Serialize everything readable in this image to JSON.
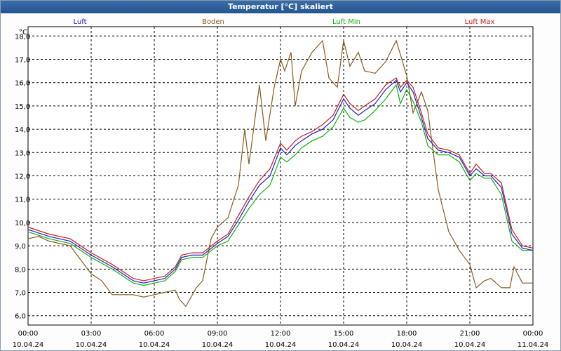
{
  "window": {
    "title": "Temperatur [°C] skaliert"
  },
  "chart_data": {
    "type": "line",
    "title": "Temperatur [°C] skaliert",
    "ylabel": "°C",
    "ylim": [
      5.6,
      18.4
    ],
    "yticks": [
      "18,0",
      "17,0",
      "16,0",
      "15,0",
      "14,0",
      "13,0",
      "12,0",
      "11,0",
      "10,0",
      "9,0",
      "8,0",
      "7,0",
      "6,0"
    ],
    "xlim": [
      0,
      24
    ],
    "xticks": [
      {
        "time": "00:00",
        "date": "10.04.24"
      },
      {
        "time": "03:00",
        "date": "10.04.24"
      },
      {
        "time": "06:00",
        "date": "10.04.24"
      },
      {
        "time": "09:00",
        "date": "10.04.24"
      },
      {
        "time": "12:00",
        "date": "10.04.24"
      },
      {
        "time": "15:00",
        "date": "10.04.24"
      },
      {
        "time": "18:00",
        "date": "10.04.24"
      },
      {
        "time": "21:00",
        "date": "10.04.24"
      },
      {
        "time": "00:00",
        "date": "11.04.24"
      }
    ],
    "grid": true,
    "legend_position": "top",
    "series": [
      {
        "name": "Luft",
        "color": "#2020c8",
        "points": [
          [
            0,
            9.7
          ],
          [
            1,
            9.4
          ],
          [
            2,
            9.2
          ],
          [
            3,
            8.6
          ],
          [
            4,
            8.1
          ],
          [
            5,
            7.5
          ],
          [
            5.5,
            7.4
          ],
          [
            6,
            7.5
          ],
          [
            6.5,
            7.6
          ],
          [
            7,
            8.0
          ],
          [
            7.3,
            8.5
          ],
          [
            7.8,
            8.6
          ],
          [
            8.3,
            8.6
          ],
          [
            9,
            9.1
          ],
          [
            9.5,
            9.4
          ],
          [
            10,
            10.1
          ],
          [
            10.5,
            10.9
          ],
          [
            11,
            11.6
          ],
          [
            11.5,
            12.0
          ],
          [
            12,
            13.2
          ],
          [
            12.3,
            12.9
          ],
          [
            12.7,
            13.3
          ],
          [
            13,
            13.5
          ],
          [
            13.5,
            13.8
          ],
          [
            14,
            14.0
          ],
          [
            14.5,
            14.4
          ],
          [
            15,
            15.3
          ],
          [
            15.3,
            14.9
          ],
          [
            15.7,
            14.6
          ],
          [
            16,
            14.8
          ],
          [
            16.5,
            15.1
          ],
          [
            17,
            15.7
          ],
          [
            17.5,
            16.1
          ],
          [
            17.7,
            15.6
          ],
          [
            18,
            16.0
          ],
          [
            18.3,
            15.6
          ],
          [
            18.7,
            14.5
          ],
          [
            19,
            13.6
          ],
          [
            19.5,
            13.1
          ],
          [
            20,
            13.0
          ],
          [
            20.5,
            12.8
          ],
          [
            21,
            12.0
          ],
          [
            21.3,
            12.3
          ],
          [
            21.7,
            12.0
          ],
          [
            22,
            12.0
          ],
          [
            22.5,
            11.5
          ],
          [
            23,
            9.5
          ],
          [
            23.5,
            8.9
          ],
          [
            24,
            8.8
          ]
        ]
      },
      {
        "name": "Boden",
        "color": "#8b5a1e",
        "points": [
          [
            0,
            9.3
          ],
          [
            0.5,
            9.4
          ],
          [
            1,
            9.2
          ],
          [
            2,
            9.0
          ],
          [
            3,
            7.8
          ],
          [
            3.5,
            7.5
          ],
          [
            4,
            6.9
          ],
          [
            4.5,
            6.9
          ],
          [
            5,
            6.9
          ],
          [
            5.5,
            6.8
          ],
          [
            6,
            6.9
          ],
          [
            6.5,
            7.0
          ],
          [
            7,
            7.1
          ],
          [
            7.2,
            6.7
          ],
          [
            7.5,
            6.4
          ],
          [
            8,
            7.2
          ],
          [
            8.3,
            7.5
          ],
          [
            8.7,
            9.3
          ],
          [
            9,
            9.8
          ],
          [
            9.5,
            10.2
          ],
          [
            10,
            11.6
          ],
          [
            10.3,
            14.0
          ],
          [
            10.5,
            12.5
          ],
          [
            11,
            15.9
          ],
          [
            11.3,
            13.5
          ],
          [
            11.7,
            15.8
          ],
          [
            12,
            17.0
          ],
          [
            12.2,
            16.5
          ],
          [
            12.5,
            17.3
          ],
          [
            12.7,
            15.0
          ],
          [
            13,
            16.5
          ],
          [
            13.5,
            17.3
          ],
          [
            14,
            17.8
          ],
          [
            14.3,
            16.2
          ],
          [
            14.7,
            15.8
          ],
          [
            15,
            17.8
          ],
          [
            15.3,
            16.7
          ],
          [
            15.7,
            17.3
          ],
          [
            16,
            16.5
          ],
          [
            16.5,
            16.4
          ],
          [
            17,
            16.9
          ],
          [
            17.5,
            17.8
          ],
          [
            18,
            16.3
          ],
          [
            18.3,
            14.7
          ],
          [
            18.7,
            15.6
          ],
          [
            19,
            14.8
          ],
          [
            19.5,
            11.4
          ],
          [
            20,
            9.6
          ],
          [
            20.5,
            8.8
          ],
          [
            21,
            8.2
          ],
          [
            21.3,
            7.2
          ],
          [
            21.7,
            7.5
          ],
          [
            22,
            7.6
          ],
          [
            22.5,
            7.2
          ],
          [
            22.9,
            7.2
          ],
          [
            23.1,
            8.1
          ],
          [
            23.5,
            7.4
          ],
          [
            24,
            7.4
          ]
        ]
      },
      {
        "name": "Luft Min",
        "color": "#10b010",
        "points": [
          [
            0,
            9.6
          ],
          [
            1,
            9.3
          ],
          [
            2,
            9.1
          ],
          [
            3,
            8.5
          ],
          [
            4,
            8.0
          ],
          [
            5,
            7.4
          ],
          [
            5.5,
            7.3
          ],
          [
            6,
            7.4
          ],
          [
            6.5,
            7.5
          ],
          [
            7,
            7.9
          ],
          [
            7.3,
            8.4
          ],
          [
            7.8,
            8.5
          ],
          [
            8.3,
            8.5
          ],
          [
            9,
            9.0
          ],
          [
            9.5,
            9.2
          ],
          [
            10,
            9.9
          ],
          [
            10.5,
            10.6
          ],
          [
            11,
            11.2
          ],
          [
            11.5,
            11.6
          ],
          [
            12,
            12.8
          ],
          [
            12.3,
            12.6
          ],
          [
            12.7,
            12.9
          ],
          [
            13,
            13.2
          ],
          [
            13.5,
            13.5
          ],
          [
            14,
            13.7
          ],
          [
            14.5,
            14.1
          ],
          [
            15,
            14.9
          ],
          [
            15.3,
            14.5
          ],
          [
            15.7,
            14.3
          ],
          [
            16,
            14.4
          ],
          [
            16.5,
            14.8
          ],
          [
            17,
            15.3
          ],
          [
            17.5,
            15.9
          ],
          [
            17.7,
            15.1
          ],
          [
            18,
            15.7
          ],
          [
            18.3,
            15.2
          ],
          [
            18.7,
            14.3
          ],
          [
            19,
            13.3
          ],
          [
            19.5,
            12.9
          ],
          [
            20,
            12.9
          ],
          [
            20.5,
            12.6
          ],
          [
            21,
            11.8
          ],
          [
            21.3,
            12.1
          ],
          [
            21.7,
            11.9
          ],
          [
            22,
            11.9
          ],
          [
            22.5,
            11.2
          ],
          [
            23,
            9.2
          ],
          [
            23.5,
            8.8
          ],
          [
            24,
            8.8
          ]
        ]
      },
      {
        "name": "Luft Max",
        "color": "#c81e1e",
        "points": [
          [
            0,
            9.8
          ],
          [
            1,
            9.5
          ],
          [
            2,
            9.3
          ],
          [
            3,
            8.7
          ],
          [
            4,
            8.2
          ],
          [
            5,
            7.6
          ],
          [
            5.5,
            7.5
          ],
          [
            6,
            7.6
          ],
          [
            6.5,
            7.7
          ],
          [
            7,
            8.1
          ],
          [
            7.3,
            8.6
          ],
          [
            7.8,
            8.7
          ],
          [
            8.3,
            8.7
          ],
          [
            9,
            9.2
          ],
          [
            9.5,
            9.5
          ],
          [
            10,
            10.3
          ],
          [
            10.5,
            11.1
          ],
          [
            11,
            11.8
          ],
          [
            11.5,
            12.3
          ],
          [
            12,
            13.4
          ],
          [
            12.3,
            13.1
          ],
          [
            12.7,
            13.5
          ],
          [
            13,
            13.7
          ],
          [
            13.5,
            13.9
          ],
          [
            14,
            14.2
          ],
          [
            14.5,
            14.6
          ],
          [
            15,
            15.5
          ],
          [
            15.3,
            15.1
          ],
          [
            15.7,
            14.8
          ],
          [
            16,
            15.0
          ],
          [
            16.5,
            15.3
          ],
          [
            17,
            15.9
          ],
          [
            17.5,
            16.2
          ],
          [
            17.7,
            15.8
          ],
          [
            18,
            16.1
          ],
          [
            18.3,
            15.8
          ],
          [
            18.7,
            14.7
          ],
          [
            19,
            13.8
          ],
          [
            19.5,
            13.2
          ],
          [
            20,
            13.1
          ],
          [
            20.5,
            12.9
          ],
          [
            21,
            12.1
          ],
          [
            21.3,
            12.5
          ],
          [
            21.7,
            12.1
          ],
          [
            22,
            12.1
          ],
          [
            22.5,
            11.7
          ],
          [
            23,
            9.7
          ],
          [
            23.5,
            9.0
          ],
          [
            24,
            8.9
          ]
        ]
      }
    ]
  }
}
